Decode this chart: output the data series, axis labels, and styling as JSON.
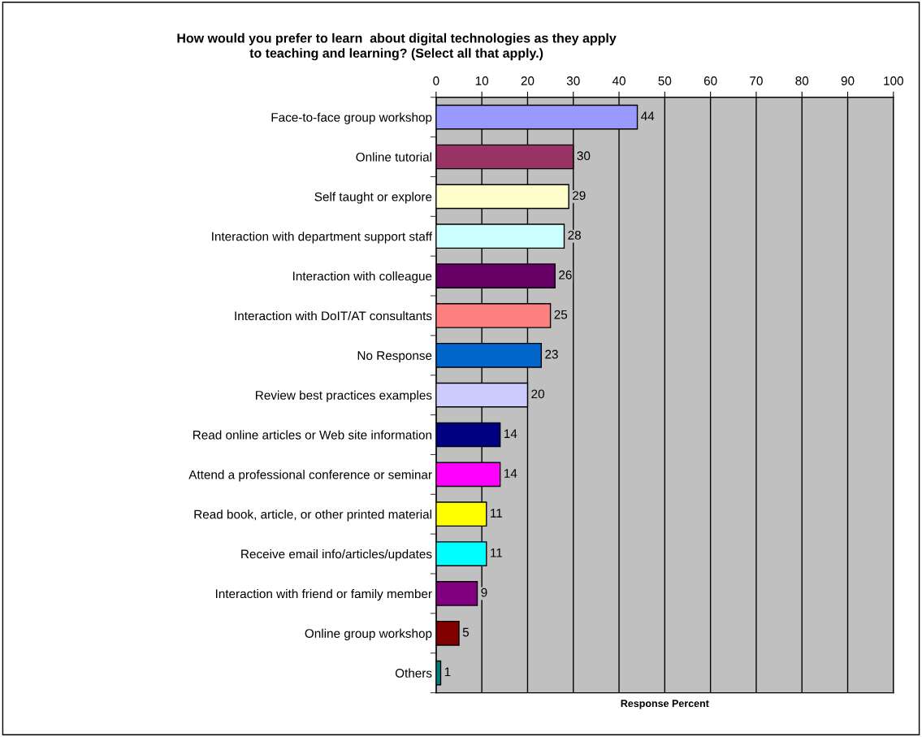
{
  "chart_data": {
    "type": "bar",
    "orientation": "horizontal",
    "title": "How would you prefer to learn  about digital technologies as they apply\nto teaching and learning? (Select all that apply.)",
    "xlabel": "Response Percent",
    "categories": [
      "Face-to-face group workshop",
      "Online tutorial",
      "Self taught or explore",
      "Interaction with department support staff",
      "Interaction with colleague",
      "Interaction with DoIT/AT consultants",
      "No Response",
      "Review best practices examples",
      "Read online articles or Web site information",
      "Attend a professional conference or seminar",
      "Read book, article, or other printed material",
      "Receive email info/articles/updates",
      "Interaction with friend or family member",
      "Online group workshop",
      "Others"
    ],
    "values": [
      44,
      30,
      29,
      28,
      26,
      25,
      23,
      20,
      14,
      14,
      11,
      11,
      9,
      5,
      1
    ],
    "colors": [
      "#9999ff",
      "#993366",
      "#ffffcc",
      "#ccffff",
      "#660066",
      "#ff8080",
      "#0066cc",
      "#ccccff",
      "#000080",
      "#ff00ff",
      "#ffff00",
      "#00ffff",
      "#800080",
      "#800000",
      "#008080"
    ],
    "xlim": [
      0,
      100
    ],
    "xticks": [
      0,
      10,
      20,
      30,
      40,
      50,
      60,
      70,
      80,
      90,
      100
    ],
    "grid": "x",
    "data_labels": true
  }
}
